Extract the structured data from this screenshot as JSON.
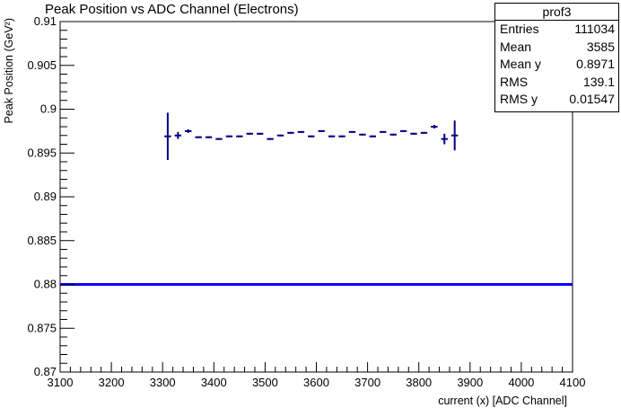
{
  "chart_data": {
    "type": "scatter",
    "title": "Peak Position vs ADC Channel (Electrons)",
    "xlabel": "current (x) [ADC Channel]",
    "ylabel": "Peak Position (GeV²)",
    "xlim": [
      3100,
      4100
    ],
    "ylim": [
      0.87,
      0.91
    ],
    "x_ticks": [
      "3100",
      "3200",
      "3300",
      "3400",
      "3500",
      "3600",
      "3700",
      "3800",
      "3900",
      "4000",
      "4100"
    ],
    "y_ticks": [
      "0.87",
      "0.875",
      "0.88",
      "0.885",
      "0.89",
      "0.895",
      "0.9",
      "0.905",
      "0.91"
    ],
    "grid": false,
    "reference_line": {
      "y": 0.88,
      "color": "#0000ff"
    },
    "marker_color": "#000080",
    "bin_half_width": 10,
    "points": [
      {
        "x": 3310,
        "y": 0.8969,
        "err": 0.0027
      },
      {
        "x": 3330,
        "y": 0.897,
        "err": 0.0004
      },
      {
        "x": 3350,
        "y": 0.8975,
        "err": 0.0002
      },
      {
        "x": 3370,
        "y": 0.8968,
        "err": 0.0001
      },
      {
        "x": 3390,
        "y": 0.8968,
        "err": 0.0001
      },
      {
        "x": 3410,
        "y": 0.8966,
        "err": 0.0001
      },
      {
        "x": 3430,
        "y": 0.8969,
        "err": 0.0001
      },
      {
        "x": 3450,
        "y": 0.8969,
        "err": 0.0001
      },
      {
        "x": 3470,
        "y": 0.8972,
        "err": 0.0001
      },
      {
        "x": 3490,
        "y": 0.8972,
        "err": 0.0001
      },
      {
        "x": 3510,
        "y": 0.8966,
        "err": 0.0001
      },
      {
        "x": 3530,
        "y": 0.897,
        "err": 0.0001
      },
      {
        "x": 3550,
        "y": 0.8973,
        "err": 0.0001
      },
      {
        "x": 3570,
        "y": 0.8974,
        "err": 0.0001
      },
      {
        "x": 3590,
        "y": 0.8969,
        "err": 0.0001
      },
      {
        "x": 3610,
        "y": 0.8975,
        "err": 0.0001
      },
      {
        "x": 3630,
        "y": 0.8969,
        "err": 0.0001
      },
      {
        "x": 3650,
        "y": 0.8969,
        "err": 0.0001
      },
      {
        "x": 3670,
        "y": 0.8974,
        "err": 0.0001
      },
      {
        "x": 3690,
        "y": 0.8971,
        "err": 0.0001
      },
      {
        "x": 3710,
        "y": 0.8969,
        "err": 0.0001
      },
      {
        "x": 3730,
        "y": 0.8974,
        "err": 0.0001
      },
      {
        "x": 3750,
        "y": 0.8971,
        "err": 0.0001
      },
      {
        "x": 3770,
        "y": 0.8975,
        "err": 0.0001
      },
      {
        "x": 3790,
        "y": 0.8972,
        "err": 0.0001
      },
      {
        "x": 3810,
        "y": 0.8973,
        "err": 0.0001
      },
      {
        "x": 3830,
        "y": 0.898,
        "err": 0.0002
      },
      {
        "x": 3850,
        "y": 0.8966,
        "err": 0.0006
      },
      {
        "x": 3870,
        "y": 0.897,
        "err": 0.0017
      }
    ]
  },
  "stats_box": {
    "title": "prof3",
    "rows": [
      {
        "label": "Entries",
        "value": "111034"
      },
      {
        "label": "Mean",
        "value": "3585"
      },
      {
        "label": "Mean y",
        "value": "0.8971"
      },
      {
        "label": "RMS",
        "value": "139.1"
      },
      {
        "label": "RMS y",
        "value": "0.01547"
      }
    ]
  }
}
